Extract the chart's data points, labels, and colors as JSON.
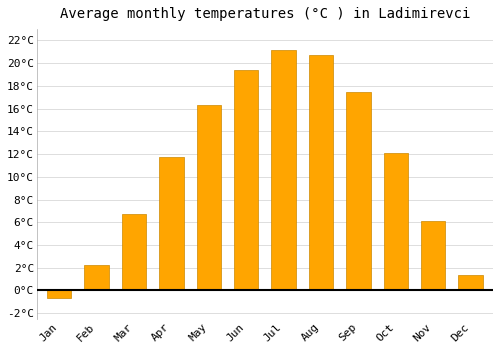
{
  "title": "Average monthly temperatures (°C ) in Ladimirevci",
  "months": [
    "Jan",
    "Feb",
    "Mar",
    "Apr",
    "May",
    "Jun",
    "Jul",
    "Aug",
    "Sep",
    "Oct",
    "Nov",
    "Dec"
  ],
  "values": [
    -0.7,
    2.2,
    6.7,
    11.7,
    16.3,
    19.4,
    21.2,
    20.7,
    17.5,
    12.1,
    6.1,
    1.4
  ],
  "bar_color": "#FFA500",
  "bar_edge_color": "#CC8800",
  "ylim": [
    -2.5,
    23
  ],
  "yticks": [
    -2,
    0,
    2,
    4,
    6,
    8,
    10,
    12,
    14,
    16,
    18,
    20,
    22
  ],
  "ytick_labels": [
    "-2°C",
    "0°C",
    "2°C",
    "4°C",
    "6°C",
    "8°C",
    "10°C",
    "12°C",
    "14°C",
    "16°C",
    "18°C",
    "20°C",
    "22°C"
  ],
  "background_color": "#ffffff",
  "grid_color": "#dddddd",
  "title_fontsize": 10,
  "tick_fontsize": 8,
  "zero_line_color": "#000000",
  "bar_width": 0.65
}
